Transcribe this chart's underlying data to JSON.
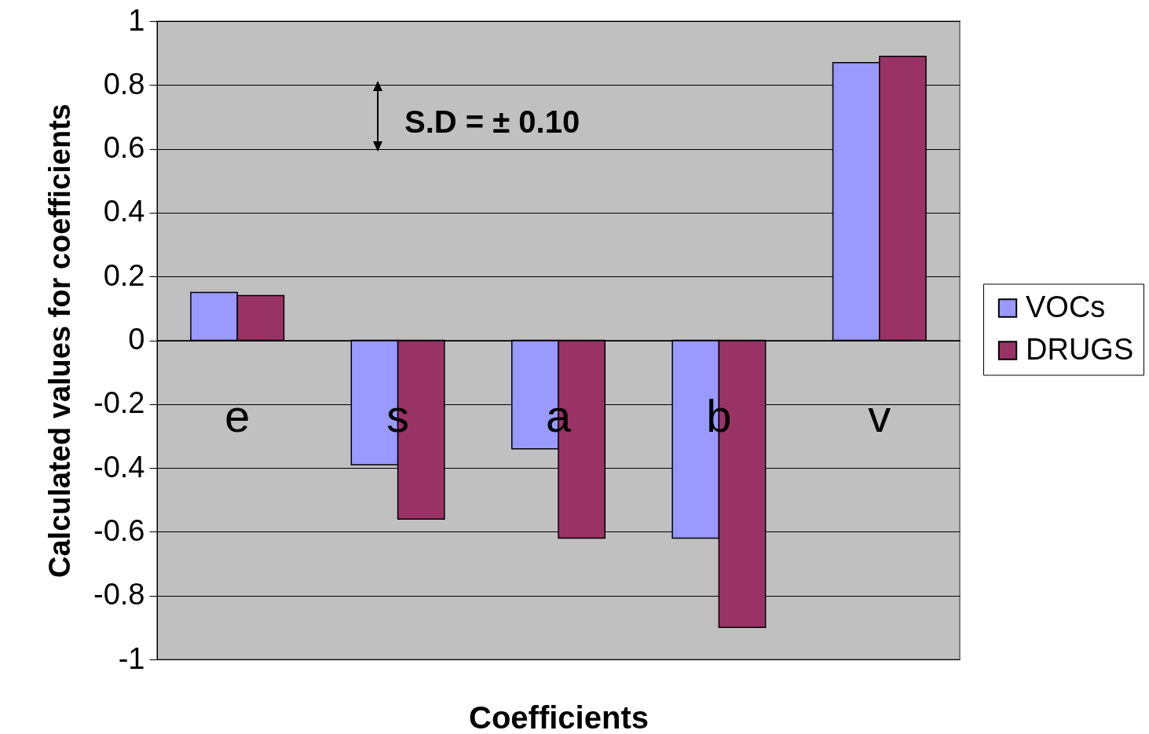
{
  "chart_data": {
    "type": "bar",
    "xlabel": "Coefficients",
    "ylabel": "Calculated values for coefficients",
    "categories": [
      "e",
      "s",
      "a",
      "b",
      "v"
    ],
    "series": [
      {
        "name": "VOCs",
        "color": "#9999ff",
        "values": [
          0.15,
          -0.39,
          -0.34,
          -0.62,
          0.87
        ]
      },
      {
        "name": "DRUGS",
        "color": "#993366",
        "values": [
          0.14,
          -0.56,
          -0.62,
          -0.9,
          0.89
        ]
      }
    ],
    "ylim": [
      -1,
      1
    ],
    "yticks": [
      -1,
      -0.8,
      -0.6,
      -0.4,
      -0.2,
      0,
      0.2,
      0.4,
      0.6,
      0.8,
      1
    ],
    "grid": "y",
    "legend": "right",
    "annotations": [
      "S.D = ± 0.10"
    ]
  }
}
